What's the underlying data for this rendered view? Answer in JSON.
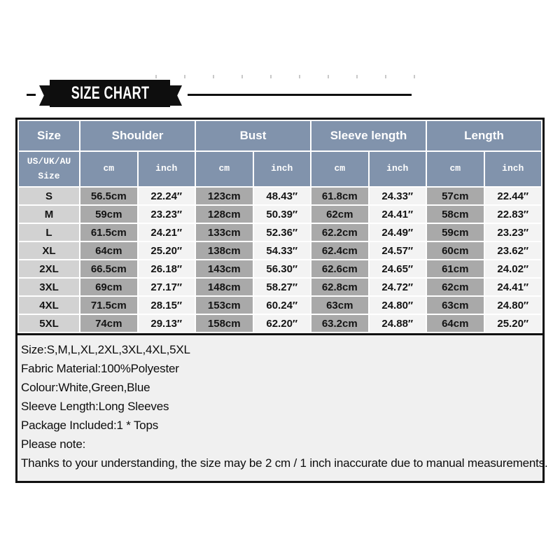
{
  "banner": {
    "title": "SIZE CHART"
  },
  "size_table": {
    "header": [
      "Size",
      "Shoulder",
      "Bust",
      "Sleeve length",
      "Length"
    ],
    "subheader": {
      "size_col": "US/UK/AU Size",
      "cm": "cm",
      "inch": "inch"
    },
    "rows": [
      [
        "S",
        "56.5cm",
        "22.24″",
        "123cm",
        "48.43″",
        "61.8cm",
        "24.33″",
        "57cm",
        "22.44″"
      ],
      [
        "M",
        "59cm",
        "23.23″",
        "128cm",
        "50.39″",
        "62cm",
        "24.41″",
        "58cm",
        "22.83″"
      ],
      [
        "L",
        "61.5cm",
        "24.21″",
        "133cm",
        "52.36″",
        "62.2cm",
        "24.49″",
        "59cm",
        "23.23″"
      ],
      [
        "XL",
        "64cm",
        "25.20″",
        "138cm",
        "54.33″",
        "62.4cm",
        "24.57″",
        "60cm",
        "23.62″"
      ],
      [
        "2XL",
        "66.5cm",
        "26.18″",
        "143cm",
        "56.30″",
        "62.6cm",
        "24.65″",
        "61cm",
        "24.02″"
      ],
      [
        "3XL",
        "69cm",
        "27.17″",
        "148cm",
        "58.27″",
        "62.8cm",
        "24.72″",
        "62cm",
        "24.41″"
      ],
      [
        "4XL",
        "71.5cm",
        "28.15″",
        "153cm",
        "60.24″",
        "63cm",
        "24.80″",
        "63cm",
        "24.80″"
      ],
      [
        "5XL",
        "74cm",
        "29.13″",
        "158cm",
        "62.20″",
        "63.2cm",
        "24.88″",
        "64cm",
        "25.20″"
      ]
    ]
  },
  "details": {
    "lines": [
      "Size:S,M,L,XL,2XL,3XL,4XL,5XL",
      "Fabric Material:100%Polyester",
      "Colour:White,Green,Blue",
      "Sleeve Length:Long Sleeves",
      "Package Included:1 * Tops",
      "Please note:",
      "Thanks to your understanding, the size may be 2 cm / 1 inch inaccurate due to manual measurements."
    ]
  },
  "colors": {
    "header_bg": "#8193AC",
    "size_column_bg": "#D2D2D2",
    "cm_column_bg": "#A9A9A9",
    "inch_column_bg": "#F3F3F3",
    "ribbon_bg": "#0E0E0E",
    "note_bg": "#F0F0F0",
    "border": "#101010"
  }
}
